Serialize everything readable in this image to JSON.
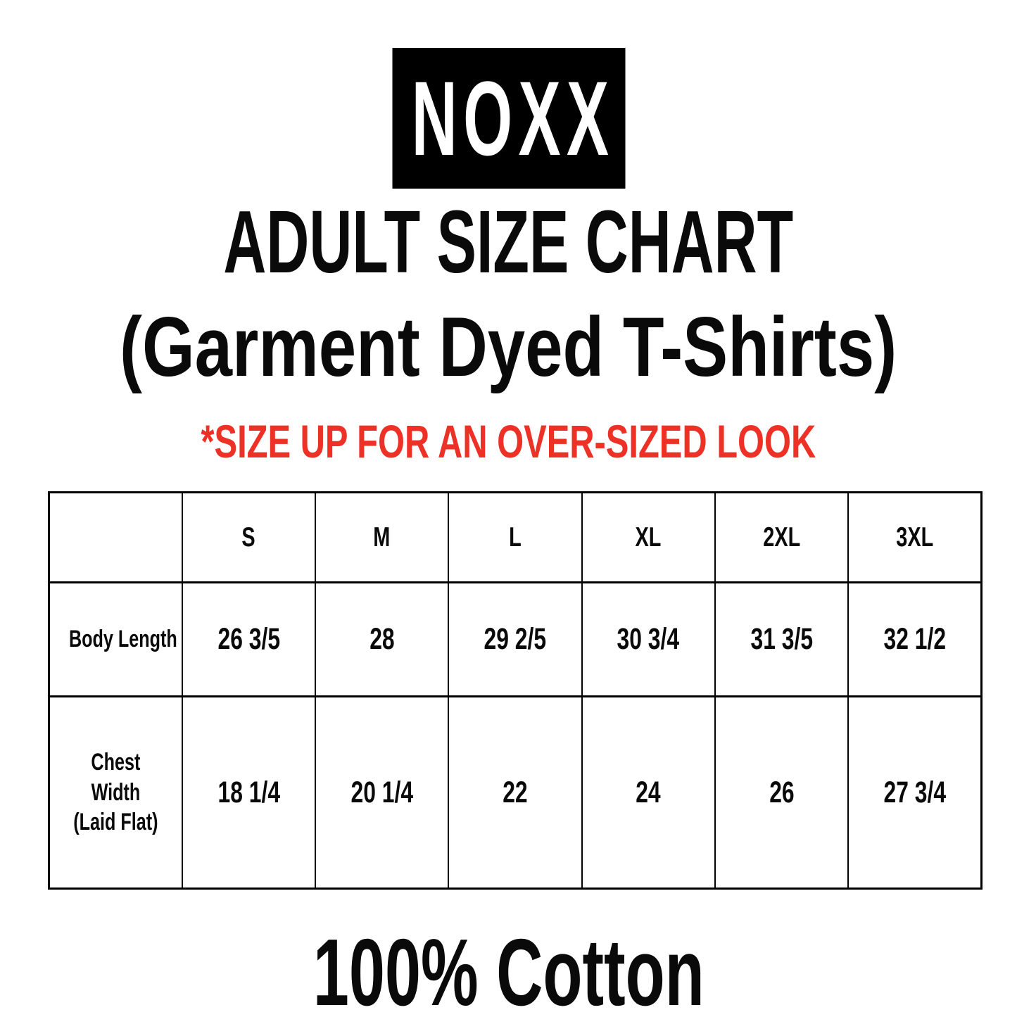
{
  "logo": {
    "text": "NOXX",
    "background": "#000000",
    "color": "#ffffff"
  },
  "heading": {
    "title": "ADULT SIZE CHART",
    "subtitle": "(Garment Dyed T-Shirts)"
  },
  "note": {
    "text": "*SIZE UP FOR AN OVER-SIZED LOOK",
    "color": "#ed3126"
  },
  "size_table": {
    "columns": [
      "",
      "S",
      "M",
      "L",
      "XL",
      "2XL",
      "3XL"
    ],
    "rows": [
      {
        "label": "Body Length",
        "values": [
          "26 3/5",
          "28",
          "29 2/5",
          "30 3/4",
          "31 3/5",
          "32 1/2"
        ]
      },
      {
        "label": "Chest Width\n(Laid Flat)",
        "values": [
          "18 1/4",
          "20 1/4",
          "22",
          "24",
          "26",
          "27 3/4"
        ]
      }
    ]
  },
  "footer": {
    "text": "100% Cotton"
  }
}
